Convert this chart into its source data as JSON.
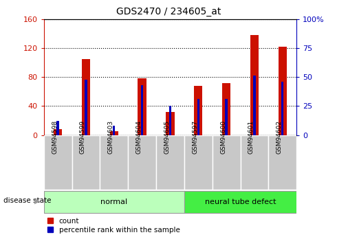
{
  "title": "GDS2470 / 234605_at",
  "samples": [
    "GSM94598",
    "GSM94599",
    "GSM94603",
    "GSM94604",
    "GSM94605",
    "GSM94597",
    "GSM94600",
    "GSM94601",
    "GSM94602"
  ],
  "count_values": [
    8,
    105,
    5,
    78,
    32,
    68,
    72,
    138,
    122
  ],
  "percentile_values": [
    12,
    48,
    8,
    43,
    25,
    31,
    31,
    51,
    46
  ],
  "groups": [
    {
      "label": "normal",
      "start": 0,
      "end": 5,
      "color": "#bbffbb"
    },
    {
      "label": "neural tube defect",
      "start": 5,
      "end": 9,
      "color": "#44ee44"
    }
  ],
  "left_ylim": [
    0,
    160
  ],
  "right_ylim": [
    0,
    100
  ],
  "left_yticks": [
    0,
    40,
    80,
    120,
    160
  ],
  "right_yticks": [
    0,
    25,
    50,
    75,
    100
  ],
  "left_yticklabels": [
    "0",
    "40",
    "80",
    "120",
    "160"
  ],
  "right_yticklabels": [
    "0",
    "25",
    "50",
    "75",
    "100%"
  ],
  "bar_color": "#cc1100",
  "percentile_color": "#0000bb",
  "bar_width": 0.3,
  "percentile_bar_width": 0.08,
  "legend_items": [
    "count",
    "percentile rank within the sample"
  ],
  "sample_box_color": "#c8c8c8",
  "disease_state_label": "disease state"
}
